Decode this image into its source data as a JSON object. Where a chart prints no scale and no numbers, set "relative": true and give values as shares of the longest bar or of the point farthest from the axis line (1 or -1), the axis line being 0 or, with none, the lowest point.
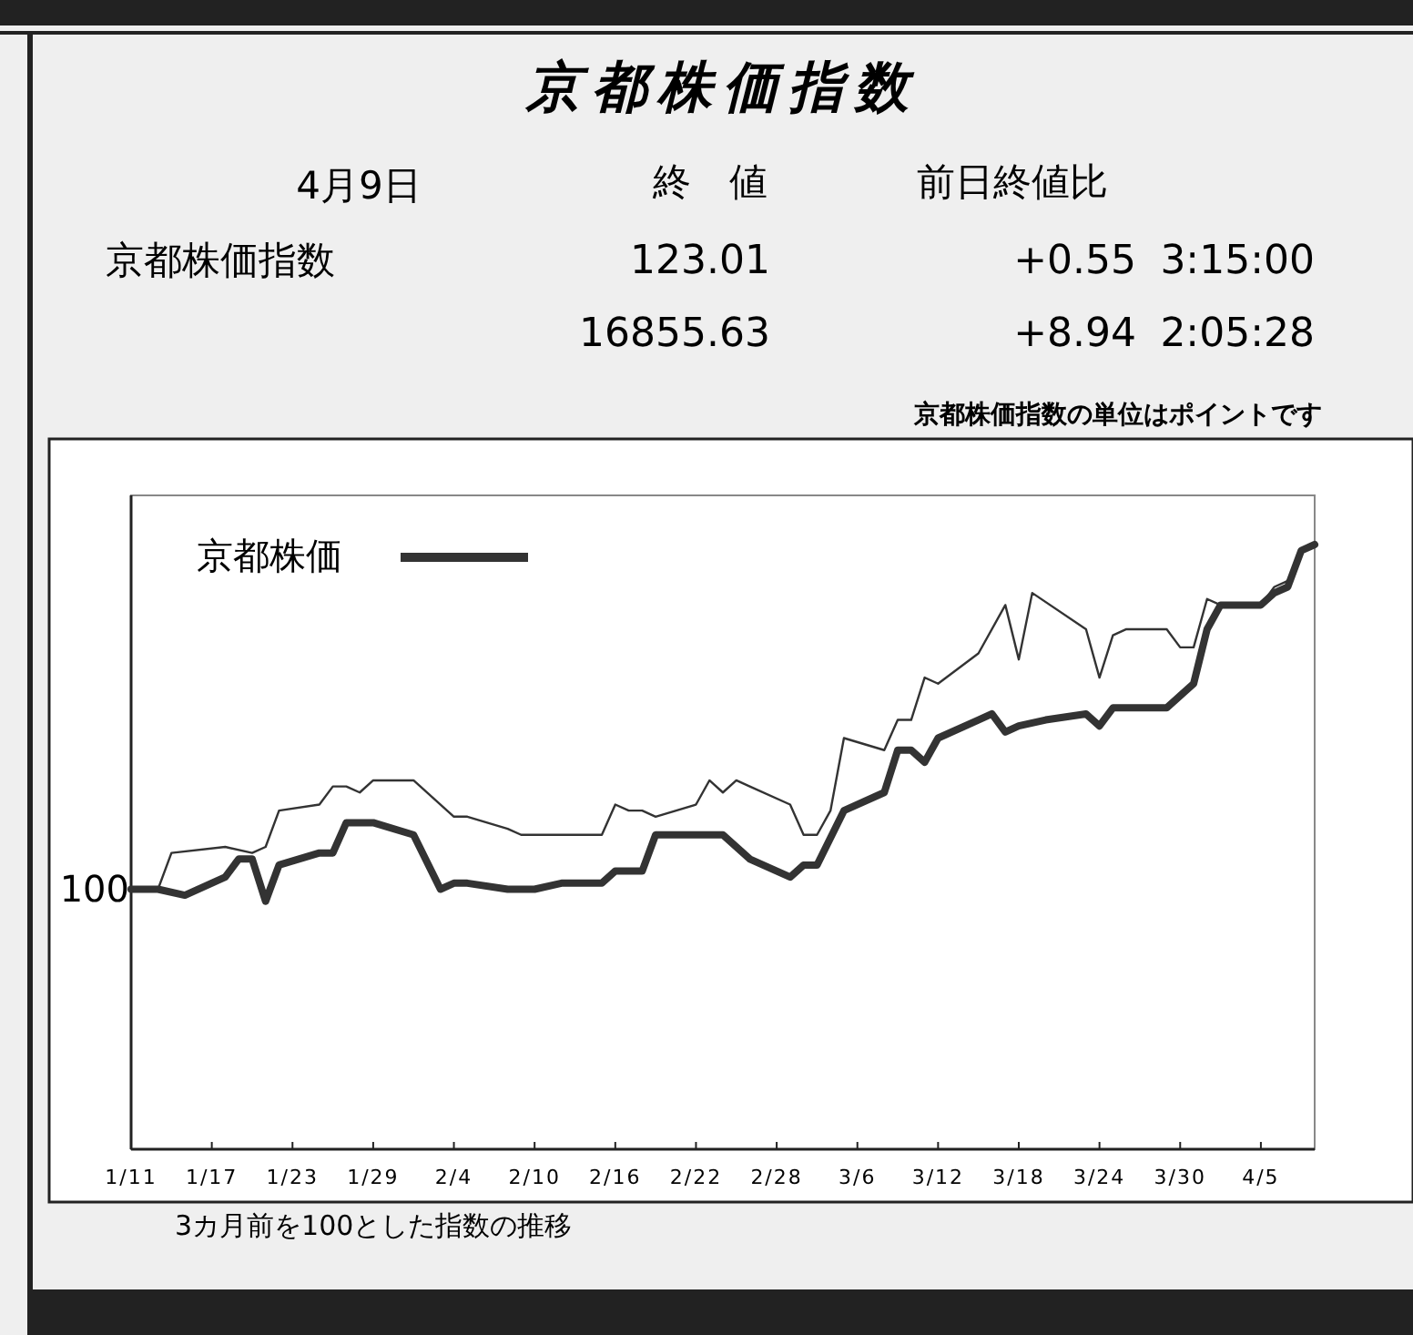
{
  "chart_data": {
    "type": "line",
    "title": "京都株価指数",
    "relative": true,
    "legend": "top left",
    "xlim": [
      "--01-11",
      "--04-09"
    ],
    "xticks": [
      {
        "value": "--01-11",
        "label": "1/11"
      },
      {
        "value": "--01-17",
        "label": "1/17"
      },
      {
        "value": "--01-23",
        "label": "1/23"
      },
      {
        "value": "--01-29",
        "label": "1/29"
      },
      {
        "value": "--02-04",
        "label": "2/4"
      },
      {
        "value": "--02-10",
        "label": "2/10"
      },
      {
        "value": "--02-16",
        "label": "2/16"
      },
      {
        "value": "--02-22",
        "label": "2/22"
      },
      {
        "value": "--02-28",
        "label": "2/28"
      },
      {
        "value": "--03-06",
        "label": "3/6"
      },
      {
        "value": "--03-12",
        "label": "3/12"
      },
      {
        "value": "--03-18",
        "label": "3/18"
      },
      {
        "value": "--03-24",
        "label": "3/24"
      },
      {
        "value": "--03-30",
        "label": "3/30"
      },
      {
        "value": "--04-05",
        "label": "4/5"
      }
    ],
    "series": [
      {
        "name": "京都株価",
        "color": "#333333",
        "x": [
          "--01-11",
          "--01-13",
          "--01-15",
          "--01-18",
          "--01-19",
          "--01-20",
          "--01-21",
          "--01-22",
          "--01-25",
          "--01-26",
          "--01-27",
          "--01-28",
          "--01-29",
          "--02-01",
          "--02-03",
          "--02-04",
          "--02-05",
          "--02-08",
          "--02-10",
          "--02-12",
          "--02-15",
          "--02-16",
          "--02-17",
          "--02-18",
          "--02-19",
          "--02-22",
          "--02-23",
          "--02-24",
          "--02-26",
          "--03-01",
          "--03-02",
          "--03-03",
          "--03-05",
          "--03-08",
          "--03-09",
          "--03-10",
          "--03-11",
          "--03-12",
          "--03-15",
          "--03-16",
          "--03-17",
          "--03-18",
          "--03-20",
          "--03-23",
          "--03-24",
          "--03-25",
          "--03-29",
          "--03-30",
          "--03-31",
          "--04-01",
          "--04-02",
          "--04-05",
          "--04-06",
          "--04-07",
          "--04-08",
          "--04-09"
        ],
        "values": [
          0.43,
          0.43,
          0.42,
          0.45,
          0.48,
          0.48,
          0.41,
          0.47,
          0.49,
          0.49,
          0.54,
          0.54,
          0.54,
          0.52,
          0.43,
          0.44,
          0.44,
          0.43,
          0.43,
          0.44,
          0.44,
          0.46,
          0.46,
          0.46,
          0.52,
          0.52,
          0.52,
          0.52,
          0.48,
          0.45,
          0.47,
          0.47,
          0.56,
          0.59,
          0.66,
          0.66,
          0.64,
          0.68,
          0.71,
          0.72,
          0.69,
          0.7,
          0.71,
          0.72,
          0.7,
          0.73,
          0.73,
          0.75,
          0.77,
          0.86,
          0.9,
          0.9,
          0.92,
          0.93,
          0.99,
          1
        ]
      },
      {
        "color": "#333333",
        "x": [
          "--01-11",
          "--01-13",
          "--01-14",
          "--01-18",
          "--01-20",
          "--01-21",
          "--01-22",
          "--01-25",
          "--01-26",
          "--01-27",
          "--01-28",
          "--01-29",
          "--02-01",
          "--02-04",
          "--02-05",
          "--02-08",
          "--02-09",
          "--02-10",
          "--02-15",
          "--02-16",
          "--02-17",
          "--02-18",
          "--02-19",
          "--02-22",
          "--02-23",
          "--02-24",
          "--02-25",
          "--02-26",
          "--03-01",
          "--03-02",
          "--03-03",
          "--03-04",
          "--03-05",
          "--03-08",
          "--03-09",
          "--03-10",
          "--03-11",
          "--03-12",
          "--03-15",
          "--03-17",
          "--03-18",
          "--03-19",
          "--03-23",
          "--03-24",
          "--03-25",
          "--03-26",
          "--03-29",
          "--03-30",
          "--03-31",
          "--04-01",
          "--04-02",
          "--04-05",
          "--04-06",
          "--04-07",
          "--04-08",
          "--04-09"
        ],
        "values": [
          0.43,
          0.43,
          0.49,
          0.5,
          0.49,
          0.5,
          0.56,
          0.57,
          0.6,
          0.6,
          0.59,
          0.61,
          0.61,
          0.55,
          0.55,
          0.53,
          0.52,
          0.52,
          0.52,
          0.57,
          0.56,
          0.56,
          0.55,
          0.57,
          0.61,
          0.59,
          0.61,
          0.6,
          0.57,
          0.52,
          0.52,
          0.56,
          0.68,
          0.66,
          0.71,
          0.71,
          0.78,
          0.77,
          0.82,
          0.9,
          0.81,
          0.92,
          0.86,
          0.78,
          0.85,
          0.86,
          0.86,
          0.83,
          0.83,
          0.91,
          0.9,
          0.9,
          0.93,
          0.94,
          0.99,
          1
        ]
      }
    ],
    "annotations": [
      "4月9日",
      "終　値",
      "前日終値比",
      "京都株価指数",
      "123.01",
      "+0.55",
      "3:15:00",
      "16855.63",
      "+8.94",
      "2:05:28",
      "京都株価指数の単位はポイントです",
      "3カ月前を100とした指数の推移",
      {
        "text": "100",
        "x": "--01-11",
        "y": 0.43
      }
    ]
  }
}
